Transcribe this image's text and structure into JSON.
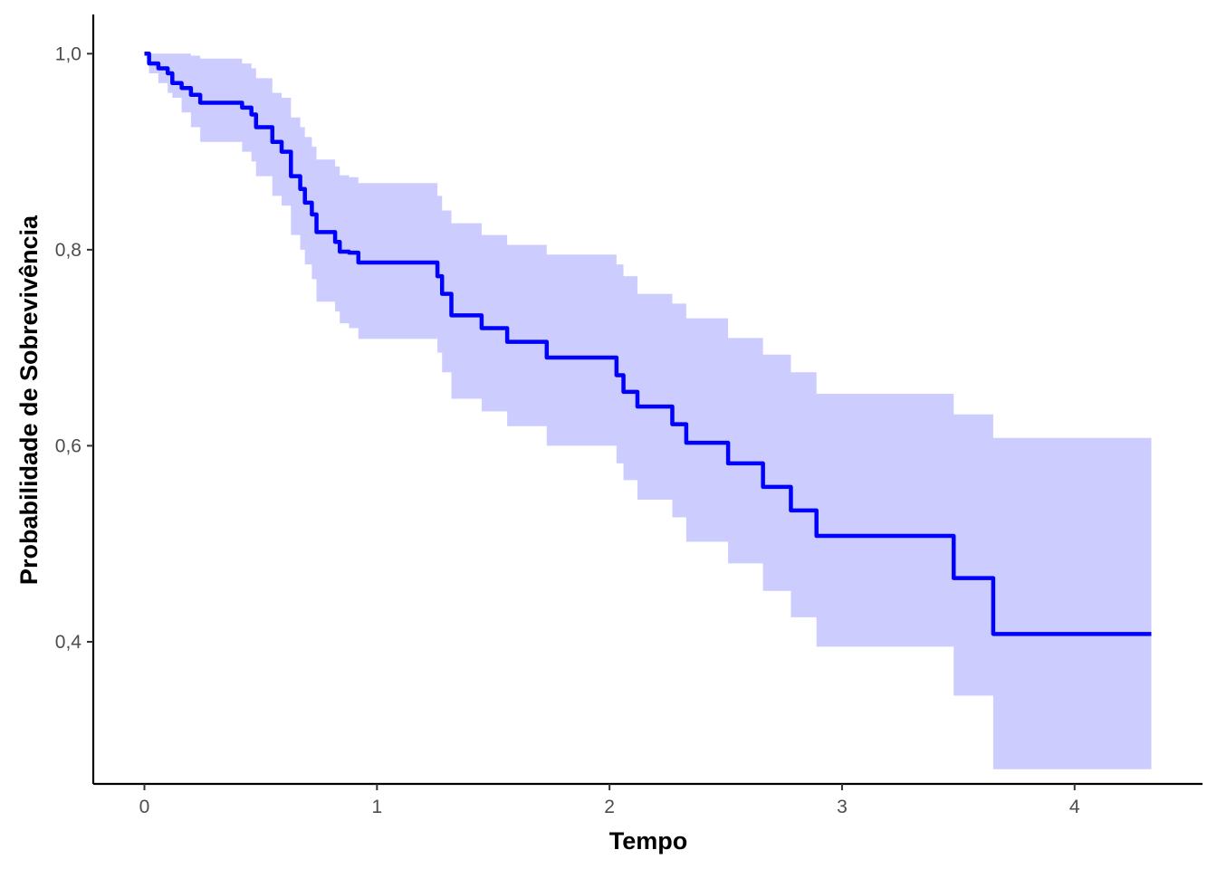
{
  "chart_data": {
    "type": "line",
    "title": "",
    "xlabel": "Tempo",
    "ylabel": "Probabilidade de Sobrevivência",
    "xlim": [
      -0.22,
      4.55
    ],
    "ylim": [
      0.255,
      1.04
    ],
    "x_ticks": [
      0,
      1,
      2,
      3,
      4
    ],
    "x_tick_labels": [
      "0",
      "1",
      "2",
      "3",
      "4"
    ],
    "y_ticks": [
      0.4,
      0.6,
      0.8,
      1.0
    ],
    "y_tick_labels": [
      "0,4",
      "0,6",
      "0,8",
      "1,0"
    ],
    "grid": false,
    "legend": "none",
    "colors": {
      "line": "#0000ff",
      "band": "#ccccff",
      "axis": "#000000"
    },
    "series": [
      {
        "step": true,
        "x": [
          0,
          0.02,
          0.06,
          0.1,
          0.12,
          0.16,
          0.2,
          0.24,
          0.37,
          0.42,
          0.46,
          0.48,
          0.55,
          0.59,
          0.63,
          0.67,
          0.69,
          0.72,
          0.74,
          0.82,
          0.84,
          0.88,
          0.92,
          1.21,
          1.26,
          1.28,
          1.32,
          1.45,
          1.56,
          1.73,
          1.95,
          2.03,
          2.06,
          2.12,
          2.22,
          2.27,
          2.33,
          2.48,
          2.51,
          2.64,
          2.66,
          2.76,
          2.78,
          2.89,
          3.43,
          3.48,
          3.58,
          3.65,
          4.33
        ],
        "y": [
          1.0,
          0.99,
          0.985,
          0.98,
          0.97,
          0.965,
          0.958,
          0.95,
          0.95,
          0.945,
          0.938,
          0.925,
          0.91,
          0.9,
          0.875,
          0.862,
          0.848,
          0.836,
          0.818,
          0.808,
          0.798,
          0.797,
          0.787,
          0.787,
          0.773,
          0.755,
          0.733,
          0.72,
          0.706,
          0.69,
          0.69,
          0.672,
          0.655,
          0.64,
          0.64,
          0.622,
          0.603,
          0.603,
          0.582,
          0.582,
          0.558,
          0.558,
          0.534,
          0.508,
          0.508,
          0.465,
          0.465,
          0.408,
          0.408
        ],
        "lower": [
          1.0,
          0.98,
          0.97,
          0.96,
          0.955,
          0.94,
          0.925,
          0.91,
          0.91,
          0.9,
          0.89,
          0.875,
          0.855,
          0.845,
          0.815,
          0.8,
          0.785,
          0.77,
          0.747,
          0.737,
          0.725,
          0.72,
          0.709,
          0.709,
          0.695,
          0.675,
          0.648,
          0.635,
          0.62,
          0.6,
          0.6,
          0.582,
          0.565,
          0.545,
          0.545,
          0.527,
          0.502,
          0.502,
          0.48,
          0.48,
          0.452,
          0.452,
          0.425,
          0.395,
          0.395,
          0.345,
          0.345,
          0.27,
          0.27
        ],
        "upper": [
          1.0,
          1.0,
          1.0,
          1.0,
          1.0,
          1.0,
          0.998,
          0.995,
          0.995,
          0.99,
          0.985,
          0.975,
          0.96,
          0.955,
          0.935,
          0.925,
          0.915,
          0.905,
          0.892,
          0.885,
          0.876,
          0.874,
          0.868,
          0.868,
          0.855,
          0.84,
          0.827,
          0.815,
          0.805,
          0.795,
          0.795,
          0.785,
          0.773,
          0.755,
          0.755,
          0.745,
          0.73,
          0.73,
          0.71,
          0.71,
          0.693,
          0.693,
          0.675,
          0.653,
          0.653,
          0.632,
          0.632,
          0.608,
          0.608
        ]
      }
    ]
  }
}
